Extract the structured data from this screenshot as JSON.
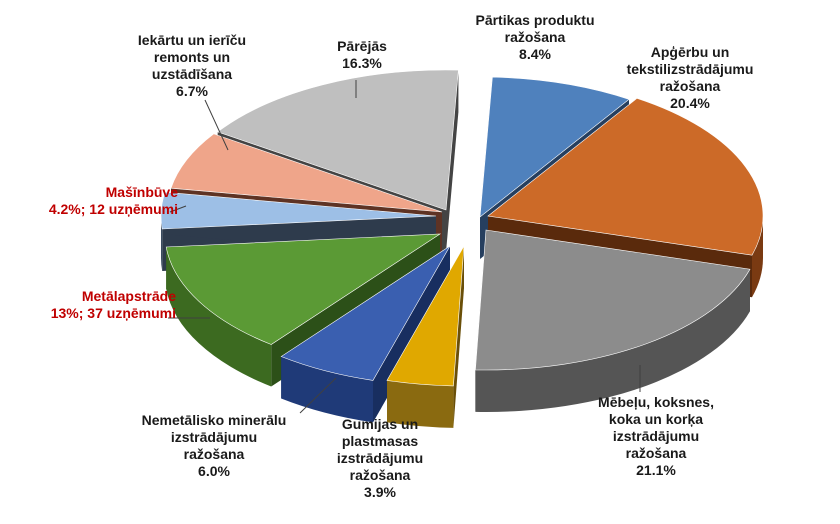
{
  "chart_data": {
    "type": "pie",
    "title": "",
    "slices": [
      {
        "lines": [
          "Pārtikas produktu",
          "ražošana",
          "8.4%"
        ],
        "value": 8.4,
        "color": "#4f81bd",
        "side": "#2f5278",
        "dark": "#263f5f",
        "highlight": false
      },
      {
        "lines": [
          "Apģērbu un",
          "tekstilizstrādājumu",
          "ražošana",
          "20.4%"
        ],
        "value": 20.4,
        "color": "#cc6a28",
        "side": "#7a3a12",
        "dark": "#5a2a0c",
        "highlight": false
      },
      {
        "lines": [
          "Mēbeļu, koksnes,",
          "koka un korķa",
          "izstrādājumu",
          "ražošana",
          "21.1%"
        ],
        "value": 21.1,
        "color": "#8c8c8c",
        "side": "#555555",
        "dark": "#444444",
        "highlight": false
      },
      {
        "lines": [
          "Gumijas un",
          "plastmasas",
          "izstrādājumu",
          "ražošana",
          "3.9%"
        ],
        "value": 3.9,
        "color": "#e0a800",
        "side": "#8a6a10",
        "dark": "#6a4f08",
        "highlight": false
      },
      {
        "lines": [
          "Nemetālisko minerālu",
          "izstrādājumu",
          "ražošana",
          "6.0%"
        ],
        "value": 6.0,
        "color": "#3a5fb0",
        "side": "#1f3a78",
        "dark": "#182e60",
        "highlight": false
      },
      {
        "lines": [
          "Metālapstrāde",
          "13%; 37 uzņēmumi"
        ],
        "value": 13.0,
        "color": "#5b9a35",
        "side": "#3c6a20",
        "dark": "#2c5018",
        "highlight": true
      },
      {
        "lines": [
          "Mašīnbūve",
          "4.2%; 12 uzņēmumi"
        ],
        "value": 4.2,
        "color": "#9dbfe6",
        "side": "#3a4b60",
        "dark": "#2e3b4c",
        "highlight": true
      },
      {
        "lines": [
          "Iekārtu un ierīču",
          "remonts un",
          "uzstādīšana",
          "6.7%"
        ],
        "value": 6.7,
        "color": "#efa58a",
        "side": "#7a4430",
        "dark": "#5e3324",
        "highlight": false
      },
      {
        "lines": [
          "Pārējās",
          "16.3%"
        ],
        "value": 16.3,
        "color": "#bfbfbf",
        "side": "#555555",
        "dark": "#444444",
        "highlight": false
      }
    ]
  }
}
